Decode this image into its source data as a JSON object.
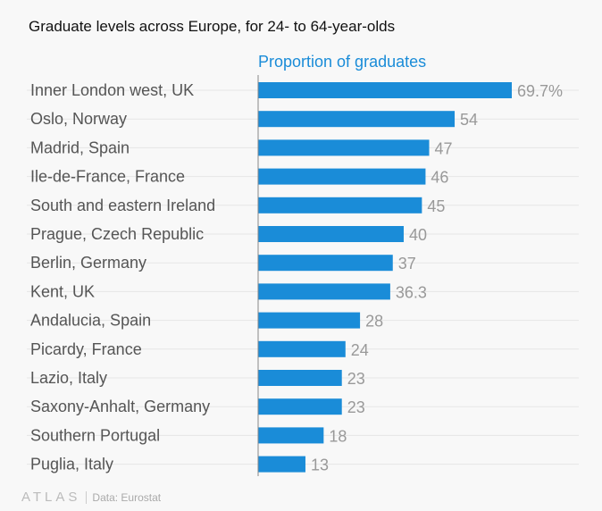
{
  "chart_data": {
    "type": "bar",
    "orientation": "horizontal",
    "title": "Graduate levels across Europe, for 24- to 64-year-olds",
    "series_label": "Proportion of graduates",
    "categories": [
      "Inner London west, UK",
      "Oslo, Norway",
      "Madrid, Spain",
      "Ile-de-France, France",
      "South and eastern Ireland",
      "Prague, Czech Republic",
      "Berlin, Germany",
      "Kent, UK",
      "Andalucia, Spain",
      "Picardy, France",
      "Lazio, Italy",
      "Saxony-Anhalt, Germany",
      "Southern Portugal",
      "Puglia, Italy"
    ],
    "values": [
      69.7,
      54,
      47,
      46,
      45,
      40,
      37,
      36.3,
      28,
      24,
      23,
      23,
      18,
      13
    ],
    "value_labels": [
      "69.7%",
      "54",
      "47",
      "46",
      "45",
      "40",
      "37",
      "36.3",
      "28",
      "24",
      "23",
      "23",
      "18",
      "13"
    ],
    "xlim": [
      0,
      69.7
    ],
    "grid": true,
    "bar_color": "#1a8cd8"
  },
  "footer": {
    "logo": "ATLAS",
    "source": "Data: Eurostat"
  }
}
